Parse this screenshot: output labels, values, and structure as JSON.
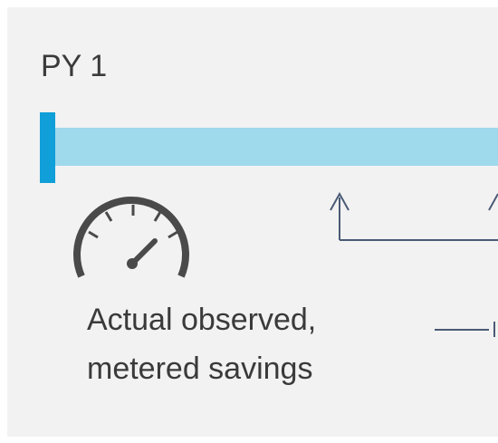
{
  "header": {
    "title": "PY 1"
  },
  "caption": {
    "lines": [
      "Actual observed,",
      "metered savings"
    ]
  }
}
